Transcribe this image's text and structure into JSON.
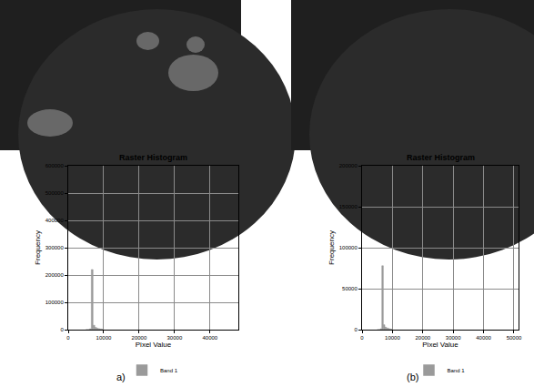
{
  "chart_data": [
    {
      "type": "histogram",
      "title": "Raster Histogram",
      "label": "a)",
      "x_label": "Pixel Value",
      "y_label": "Frequency",
      "bins": [
        5000,
        5500,
        6000,
        6500,
        7000,
        7500,
        8000,
        8500,
        9000,
        9500,
        10000
      ],
      "series": [
        {
          "name": "Band 1",
          "color": "#9a9a9a",
          "values": [
            0,
            0,
            3000,
            220000,
            16000,
            8000,
            5000,
            3500,
            2500,
            1500
          ]
        }
      ],
      "xlim": [
        0,
        48000
      ],
      "xticks": [
        0,
        10000,
        20000,
        30000,
        40000
      ],
      "ylim": [
        0,
        600000
      ],
      "yticks": [
        0,
        100000,
        200000,
        300000,
        400000,
        500000,
        600000
      ],
      "grid": true,
      "legend": "bottom"
    },
    {
      "type": "histogram",
      "title": "Raster Histogram",
      "label": "(b)",
      "x_label": "Pixel Value",
      "y_label": "Frequency",
      "bins": [
        5000,
        5500,
        6000,
        6500,
        7000,
        7500,
        8000,
        8500,
        9000,
        9500,
        10000
      ],
      "series": [
        {
          "name": "Band 1",
          "color": "#9a9a9a",
          "values": [
            0,
            0,
            1200,
            78000,
            6000,
            3000,
            2000,
            1400,
            900,
            600
          ]
        }
      ],
      "xlim": [
        0,
        51500
      ],
      "xticks": [
        0,
        10000,
        20000,
        30000,
        40000,
        50000
      ],
      "ylim": [
        0,
        200000
      ],
      "yticks": [
        0,
        50000,
        100000,
        150000,
        200000
      ],
      "grid": true,
      "legend": "bottom"
    }
  ]
}
